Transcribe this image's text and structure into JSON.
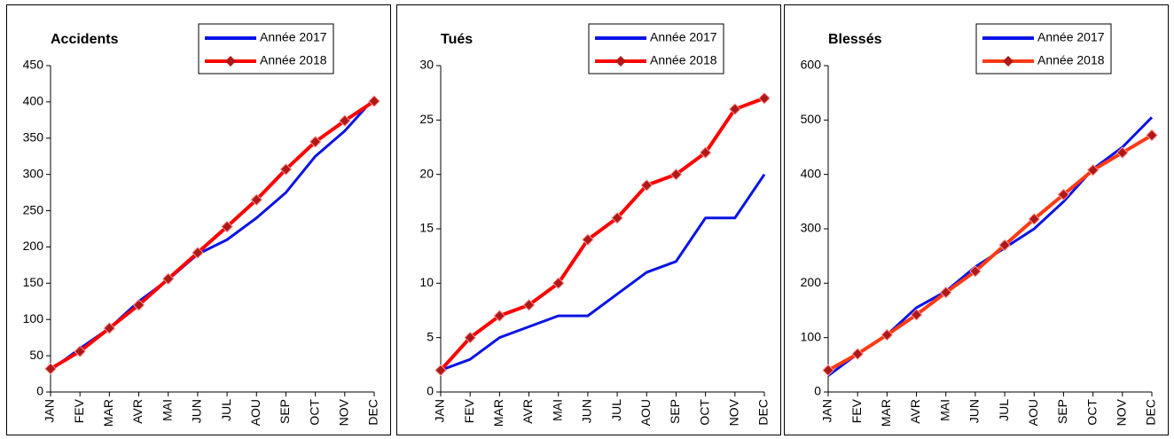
{
  "chart_data": [
    {
      "type": "line",
      "title": "Accidents",
      "categories": [
        "JAN",
        "FEV",
        "MAR",
        "AVR",
        "MAI",
        "JUN",
        "JUL",
        "AOU",
        "SEP",
        "OCT",
        "NOV",
        "DEC"
      ],
      "series": [
        {
          "name": "Année 2017",
          "color": "#0a14e6",
          "values": [
            30,
            60,
            88,
            125,
            155,
            190,
            210,
            240,
            275,
            325,
            360,
            405
          ]
        },
        {
          "name": "Année 2018",
          "color": "#ff0000",
          "marker": "diamond",
          "values": [
            32,
            56,
            88,
            120,
            156,
            192,
            228,
            265,
            307,
            345,
            374,
            401
          ]
        }
      ],
      "ylim": [
        0,
        450
      ],
      "yticks": [
        0,
        50,
        100,
        150,
        200,
        250,
        300,
        350,
        400,
        450
      ],
      "legend": "top-right"
    },
    {
      "type": "line",
      "title": "Tués",
      "categories": [
        "JAN",
        "FEV",
        "MAR",
        "AVR",
        "MAI",
        "JUN",
        "JUL",
        "AOU",
        "SEP",
        "OCT",
        "NOV",
        "DEC"
      ],
      "series": [
        {
          "name": "Année 2017",
          "color": "#0a14e6",
          "values": [
            2,
            3,
            5,
            6,
            7,
            7,
            9,
            11,
            12,
            16,
            16,
            20
          ]
        },
        {
          "name": "Année 2018",
          "color": "#ff0000",
          "marker": "diamond",
          "values": [
            2,
            5,
            7,
            8,
            10,
            14,
            16,
            19,
            20,
            22,
            26,
            27
          ]
        }
      ],
      "ylim": [
        0,
        30
      ],
      "yticks": [
        0,
        5,
        10,
        15,
        20,
        25,
        30
      ],
      "legend": "top-right"
    },
    {
      "type": "line",
      "title": "Blessés",
      "categories": [
        "JAN",
        "FEV",
        "MAR",
        "AVR",
        "MAI",
        "JUN",
        "JUL",
        "AOU",
        "SEP",
        "OCT",
        "NOV",
        "DEC"
      ],
      "series": [
        {
          "name": "Année 2017",
          "color": "#0a14e6",
          "values": [
            30,
            70,
            105,
            155,
            185,
            230,
            265,
            300,
            350,
            410,
            450,
            505
          ]
        },
        {
          "name": "Année 2018",
          "color": "#ff3a14",
          "marker": "diamond",
          "values": [
            40,
            70,
            105,
            142,
            183,
            222,
            270,
            318,
            363,
            408,
            440,
            472
          ]
        }
      ],
      "ylim": [
        0,
        600
      ],
      "yticks": [
        0,
        100,
        200,
        300,
        400,
        500,
        600
      ],
      "legend": "top-right"
    }
  ]
}
